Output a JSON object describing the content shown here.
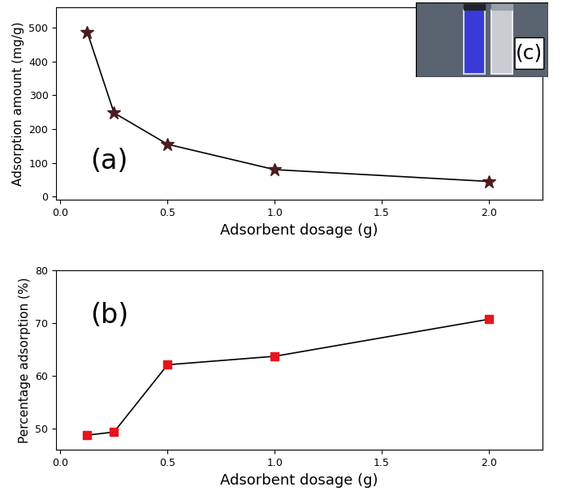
{
  "chart_data": [
    {
      "type": "line",
      "annotations": [
        "(a)"
      ],
      "x_label": "Adsorbent dosage (g)",
      "y_label": "Adsorption amount (mg/g)",
      "x": [
        0.125,
        0.25,
        0.5,
        1.0,
        2.0
      ],
      "series": [
        {
          "name": "Adsorption amount",
          "color": "#4a1c1c",
          "marker": "star",
          "line_style": "solid",
          "values": [
            487,
            248,
            155,
            80,
            45
          ]
        }
      ],
      "xlim": [
        -0.02,
        2.25
      ],
      "xticks": [
        {
          "value": 0,
          "label": "0.0"
        },
        0.5,
        1.0,
        1.5,
        2.0
      ],
      "ylim": [
        -10,
        560
      ],
      "yticks": [
        0,
        100,
        200,
        300,
        400,
        500
      ],
      "grid": false
    },
    {
      "type": "line",
      "annotations": [
        "(b)"
      ],
      "x_label": "Adsorbent dosage (g)",
      "y_label": "Percentage adsorption (%)",
      "x": [
        0.125,
        0.25,
        0.5,
        1.0,
        2.0
      ],
      "series": [
        {
          "name": "Percentage adsorption",
          "color": "#e8141c",
          "marker": "square",
          "line_style": "solid",
          "values": [
            48.8,
            49.4,
            62.1,
            63.7,
            70.7
          ]
        }
      ],
      "xlim": [
        -0.02,
        2.25
      ],
      "xticks": [
        {
          "value": 0,
          "label": "0.0"
        },
        0.5,
        1.0,
        1.5,
        2.0
      ],
      "ylim": [
        46,
        80
      ],
      "yticks": [
        50,
        60,
        70,
        80
      ],
      "grid": false
    }
  ],
  "inset": {
    "label": "(c)"
  }
}
